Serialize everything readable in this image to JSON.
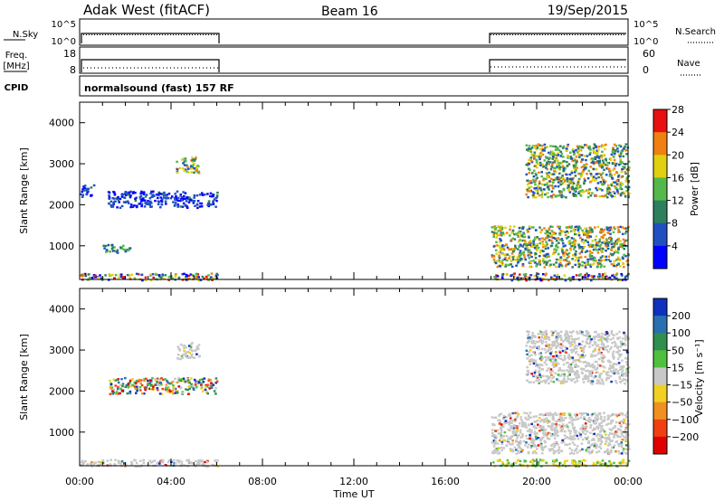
{
  "header": {
    "station": "Adak West (fitACF)",
    "beam": "Beam 16",
    "date": "19/Sep/2015"
  },
  "status_panels": {
    "nsky_label": "N.Sky",
    "nsky_ticks": [
      "10^5",
      "10^0"
    ],
    "nsearch_label": "N.Search",
    "nsearch_ticks": [
      "10^5",
      "10^0"
    ],
    "freq_label_1": "Freq.",
    "freq_label_2": "[MHz]",
    "freq_ticks": [
      "18",
      "8"
    ],
    "nave_label": "Nave",
    "nave_ticks": [
      "60",
      "0"
    ],
    "cpid_label": "CPID",
    "cpid_value": "normalsound (fast) 157 RF"
  },
  "x_axis": {
    "label": "Time UT",
    "ticks": [
      "00:00",
      "04:00",
      "08:00",
      "12:00",
      "16:00",
      "20:00",
      "00:00"
    ]
  },
  "chart_data": [
    {
      "type": "heatmap",
      "panel": "power",
      "xlabel": "Time UT",
      "ylabel": "Slant Range [km]",
      "xlim_hours": [
        0,
        24
      ],
      "ylim_km": [
        180,
        4500
      ],
      "yticks": [
        "1000",
        "2000",
        "3000",
        "4000"
      ],
      "colorbar_label": "Power [dB]",
      "colorbar_ticks": [
        "4",
        "8",
        "12",
        "16",
        "20",
        "24",
        "28"
      ],
      "colorbar_colors": [
        "#0000ff",
        "#2050c0",
        "#2e7f5e",
        "#55b84a",
        "#e0d010",
        "#f08010",
        "#e81010"
      ],
      "data_coverage_hours": [
        [
          0,
          6
        ],
        [
          18,
          24
        ]
      ],
      "echo_regions": [
        {
          "t": [
            0.0,
            6.0
          ],
          "range_km": [
            180,
            350
          ],
          "level": "mixed"
        },
        {
          "t": [
            1.2,
            6.0
          ],
          "range_km": [
            1950,
            2350
          ],
          "level": "weak"
        },
        {
          "t": [
            0.0,
            0.6
          ],
          "range_km": [
            2200,
            2500
          ],
          "level": "weak"
        },
        {
          "t": [
            4.2,
            5.2
          ],
          "range_km": [
            2800,
            3200
          ],
          "level": "strong"
        },
        {
          "t": [
            1.0,
            2.2
          ],
          "range_km": [
            850,
            1050
          ],
          "level": "moderate"
        },
        {
          "t": [
            19.5,
            24.0
          ],
          "range_km": [
            2200,
            3500
          ],
          "level": "strong"
        },
        {
          "t": [
            18.0,
            24.0
          ],
          "range_km": [
            500,
            1500
          ],
          "level": "strong"
        },
        {
          "t": [
            18.0,
            24.0
          ],
          "range_km": [
            180,
            350
          ],
          "level": "mixed"
        }
      ]
    },
    {
      "type": "heatmap",
      "panel": "velocity",
      "xlabel": "Time UT",
      "ylabel": "Slant Range [km]",
      "xlim_hours": [
        0,
        24
      ],
      "ylim_km": [
        180,
        4500
      ],
      "yticks": [
        "1000",
        "2000",
        "3000",
        "4000"
      ],
      "colorbar_label": "Velocity [m s⁻¹]",
      "colorbar_ticks": [
        "200",
        "100",
        "50",
        "15",
        "−15",
        "−50",
        "−100",
        "−200"
      ],
      "colorbar_colors": [
        "#1030c0",
        "#2a70b0",
        "#2e8f4e",
        "#50c040",
        "#c8c8c8",
        "#f0d020",
        "#f09020",
        "#f04010",
        "#e00000"
      ],
      "data_coverage_hours": [
        [
          0,
          6
        ],
        [
          18,
          24
        ]
      ],
      "echo_regions": [
        {
          "t": [
            0.0,
            6.0
          ],
          "range_km": [
            180,
            350
          ],
          "level": "ground"
        },
        {
          "t": [
            1.2,
            6.0
          ],
          "range_km": [
            1950,
            2350
          ],
          "level": "mixed"
        },
        {
          "t": [
            4.2,
            5.2
          ],
          "range_km": [
            2800,
            3200
          ],
          "level": "ground"
        },
        {
          "t": [
            19.5,
            24.0
          ],
          "range_km": [
            2200,
            3500
          ],
          "level": "ground"
        },
        {
          "t": [
            18.0,
            24.0
          ],
          "range_km": [
            500,
            1500
          ],
          "level": "ground"
        },
        {
          "t": [
            18.0,
            24.0
          ],
          "range_km": [
            180,
            350
          ],
          "level": "positive"
        }
      ]
    }
  ]
}
